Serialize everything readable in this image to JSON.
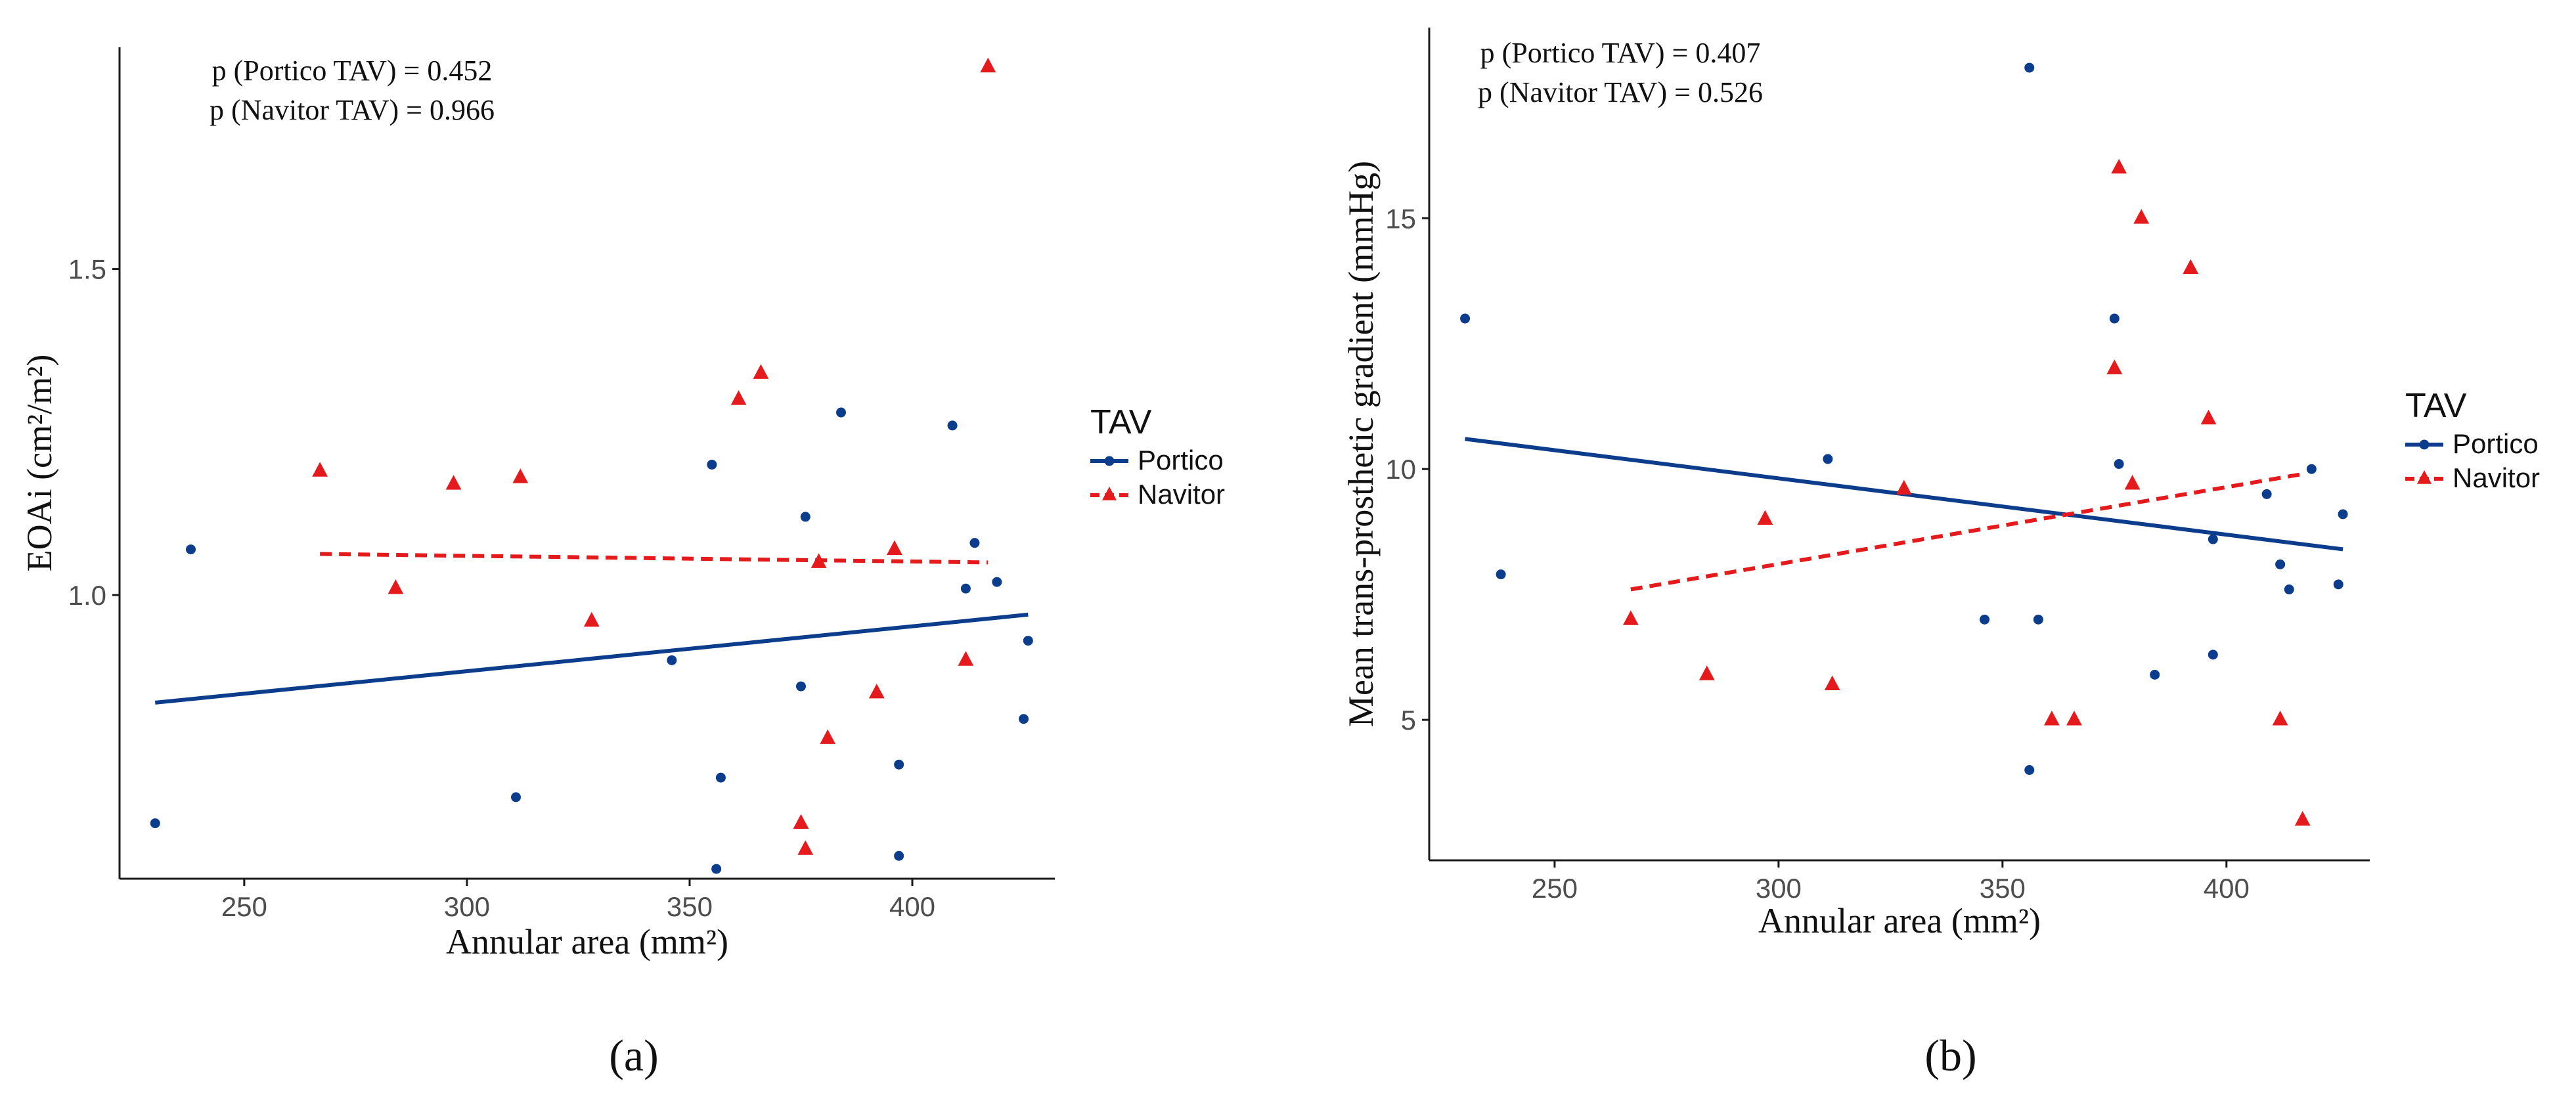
{
  "chart_data": [
    {
      "type": "scatter",
      "panel_label": "(a)",
      "xlabel": "Annular area (mm²)",
      "ylabel": "EOAi (cm²/m²)",
      "xlim": [
        222,
        432
      ],
      "ylim": [
        0.565,
        1.84
      ],
      "x_ticks": [
        250,
        300,
        350,
        400
      ],
      "x_tick_labels": [
        "250",
        "300",
        "350",
        "400"
      ],
      "y_ticks": [
        1.0,
        1.5
      ],
      "y_tick_labels": [
        "1.0",
        "1.5"
      ],
      "grid": false,
      "annotations": [
        "p (Portico TAV) = 0.452",
        "p (Navitor TAV) = 0.966"
      ],
      "legend": {
        "title": "TAV",
        "position": "right",
        "entries": [
          "Portico",
          "Navitor"
        ]
      },
      "series": [
        {
          "name": "Portico",
          "color": "#0b3d8c",
          "marker": "circle",
          "points": [
            [
              230,
              0.65
            ],
            [
              238,
              1.07
            ],
            [
              311,
              0.69
            ],
            [
              346,
              0.9
            ],
            [
              355,
              1.2
            ],
            [
              356,
              0.58
            ],
            [
              357,
              0.72
            ],
            [
              375,
              0.86
            ],
            [
              376,
              1.12
            ],
            [
              384,
              1.28
            ],
            [
              397,
              0.74
            ],
            [
              397,
              0.6
            ],
            [
              409,
              1.26
            ],
            [
              412,
              1.01
            ],
            [
              414,
              1.08
            ],
            [
              419,
              1.02
            ],
            [
              425,
              0.81
            ],
            [
              426,
              0.93
            ]
          ],
          "fit": {
            "x": [
              230,
              426
            ],
            "y": [
              0.835,
              0.97
            ],
            "style": "solid"
          }
        },
        {
          "name": "Navitor",
          "color": "#e41a1c",
          "marker": "triangle",
          "points": [
            [
              267,
              1.19
            ],
            [
              284,
              1.01
            ],
            [
              297,
              1.17
            ],
            [
              312,
              1.18
            ],
            [
              328,
              0.96
            ],
            [
              361,
              1.3
            ],
            [
              366,
              1.34
            ],
            [
              375,
              0.65
            ],
            [
              376,
              0.61
            ],
            [
              379,
              1.05
            ],
            [
              381,
              0.78
            ],
            [
              392,
              0.85
            ],
            [
              396,
              1.07
            ],
            [
              412,
              0.9
            ],
            [
              417,
              1.81
            ]
          ],
          "fit": {
            "x": [
              267,
              417
            ],
            "y": [
              1.063,
              1.05
            ],
            "style": "dashed"
          }
        }
      ]
    },
    {
      "type": "scatter",
      "panel_label": "(b)",
      "xlabel": "Annular area (mm²)",
      "ylabel": "Mean trans-prosthetic gradient (mmHg)",
      "xlim": [
        222,
        432
      ],
      "ylim": [
        2.2,
        18.8
      ],
      "x_ticks": [
        250,
        300,
        350,
        400
      ],
      "x_tick_labels": [
        "250",
        "300",
        "350",
        "400"
      ],
      "y_ticks": [
        5,
        10,
        15
      ],
      "y_tick_labels": [
        "5",
        "10",
        "15"
      ],
      "grid": false,
      "annotations": [
        "p (Portico TAV) = 0.407",
        "p (Navitor TAV) = 0.526"
      ],
      "legend": {
        "title": "TAV",
        "position": "right",
        "entries": [
          "Portico",
          "Navitor"
        ]
      },
      "series": [
        {
          "name": "Portico",
          "color": "#0b3d8c",
          "marker": "circle",
          "points": [
            [
              230,
              13.0
            ],
            [
              238,
              7.9
            ],
            [
              311,
              10.2
            ],
            [
              346,
              7.0
            ],
            [
              356,
              4.0
            ],
            [
              356,
              18.0
            ],
            [
              358,
              7.0
            ],
            [
              375,
              13.0
            ],
            [
              376,
              10.1
            ],
            [
              384,
              5.9
            ],
            [
              397,
              8.6
            ],
            [
              397,
              6.3
            ],
            [
              409,
              9.5
            ],
            [
              412,
              8.1
            ],
            [
              414,
              7.6
            ],
            [
              419,
              10.0
            ],
            [
              425,
              7.7
            ],
            [
              426,
              9.1
            ]
          ],
          "fit": {
            "x": [
              230,
              426
            ],
            "y": [
              10.6,
              8.4
            ],
            "style": "solid"
          }
        },
        {
          "name": "Navitor",
          "color": "#e41a1c",
          "marker": "triangle",
          "points": [
            [
              267,
              7.0
            ],
            [
              284,
              5.9
            ],
            [
              297,
              9.0
            ],
            [
              312,
              5.7
            ],
            [
              328,
              9.6
            ],
            [
              361,
              5.0
            ],
            [
              366,
              5.0
            ],
            [
              375,
              12.0
            ],
            [
              376,
              16.0
            ],
            [
              379,
              9.7
            ],
            [
              381,
              15.0
            ],
            [
              392,
              14.0
            ],
            [
              396,
              11.0
            ],
            [
              412,
              5.0
            ],
            [
              417,
              3.0
            ]
          ],
          "fit": {
            "x": [
              267,
              417
            ],
            "y": [
              7.6,
              9.9
            ],
            "style": "dashed"
          }
        }
      ]
    }
  ]
}
